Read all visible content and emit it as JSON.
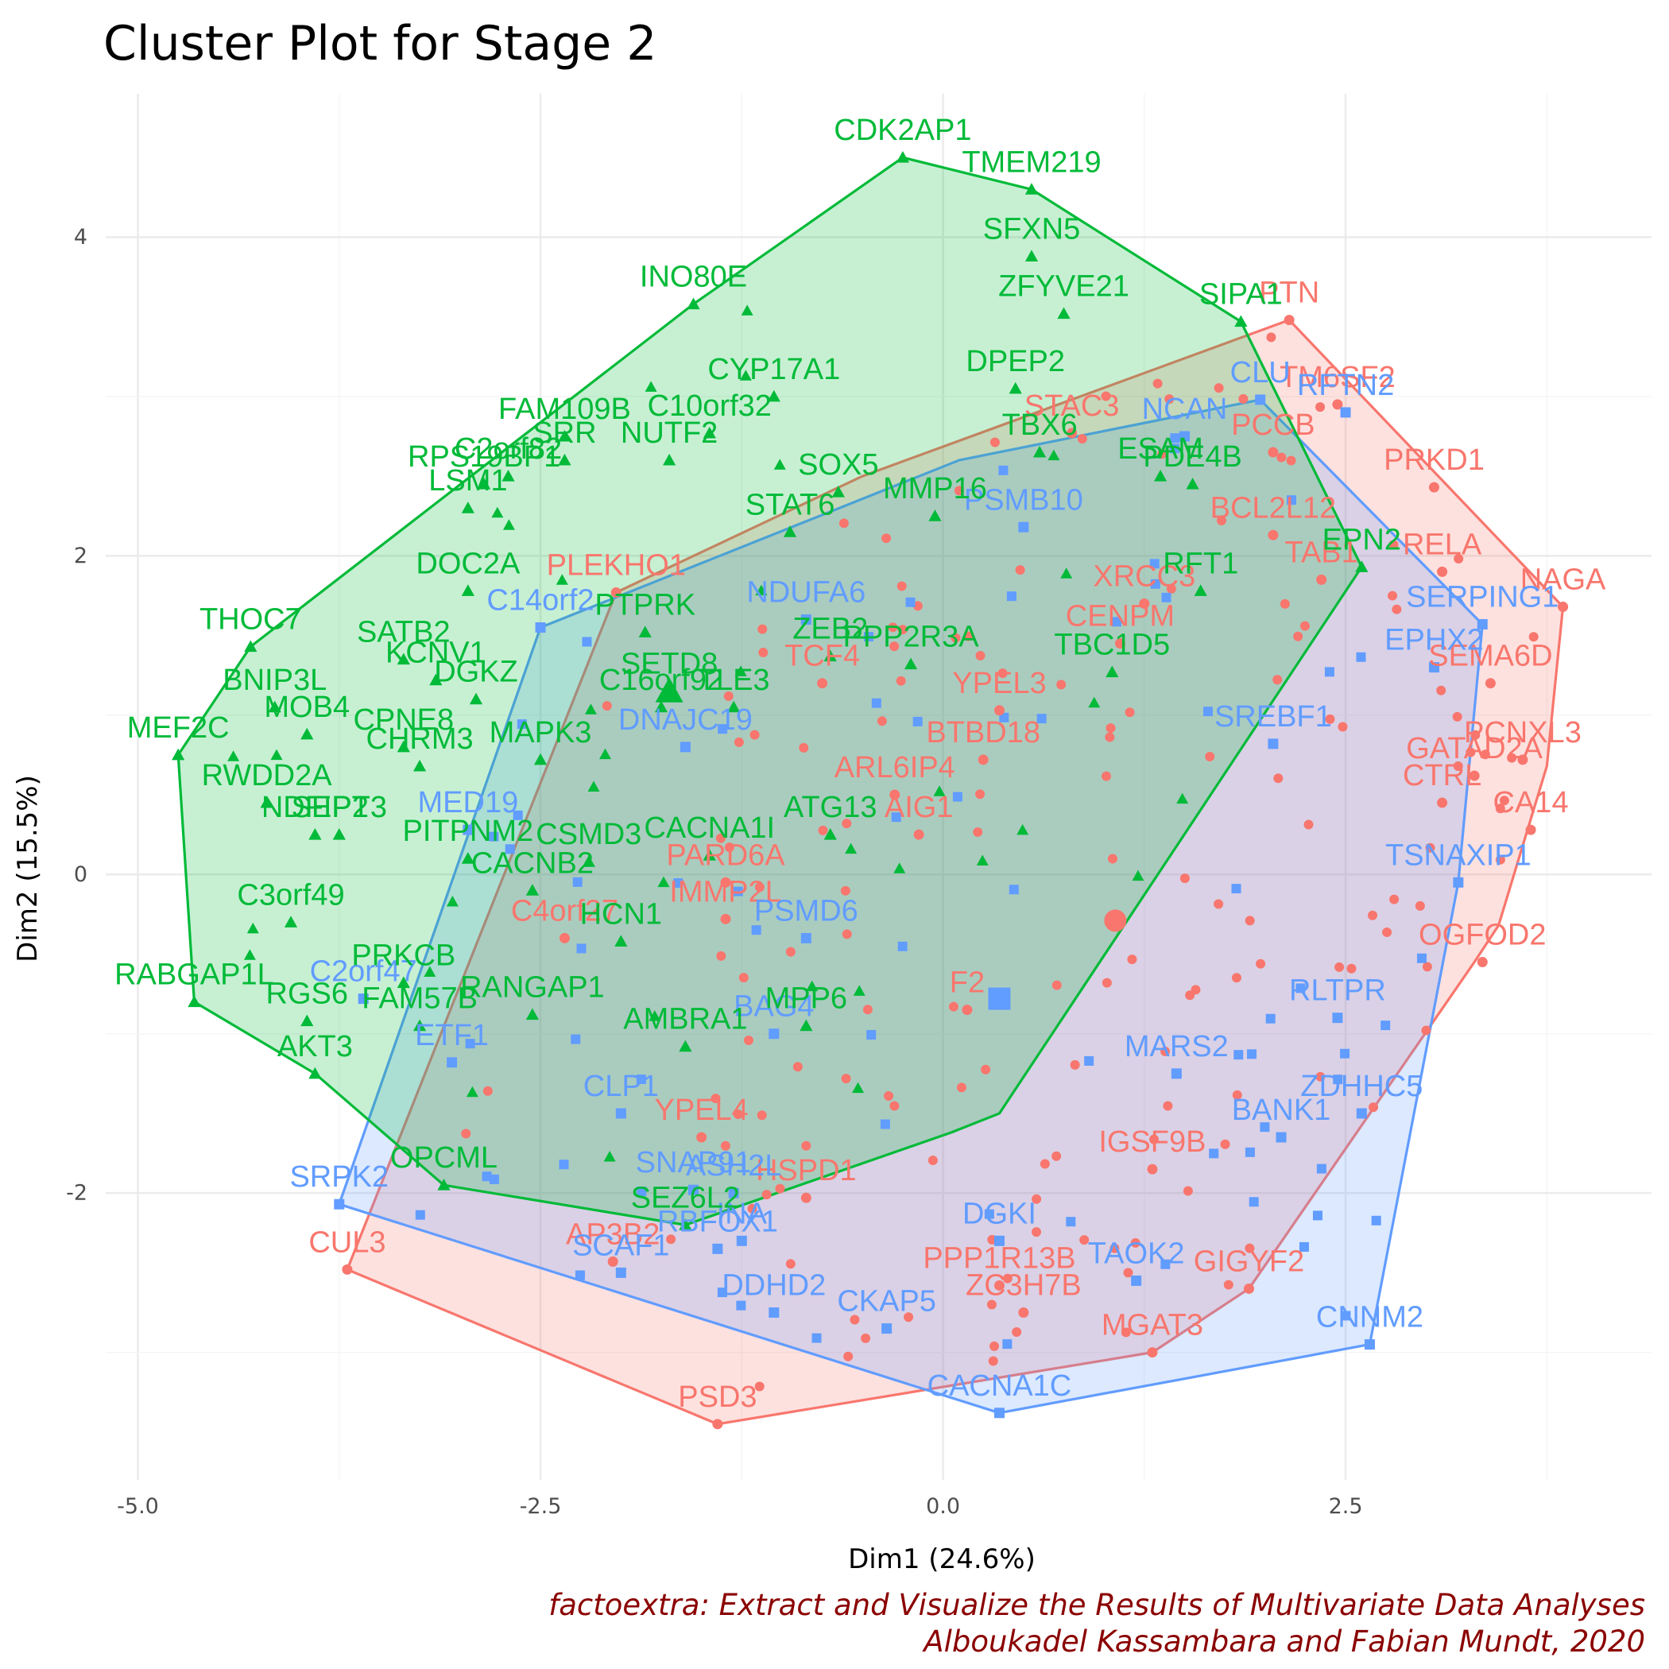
{
  "chart_data": {
    "type": "scatter",
    "title": "Cluster Plot for Stage 2",
    "xlabel": "Dim1 (24.6%)",
    "ylabel": "Dim2 (15.5%)",
    "xlim": [
      -5.2,
      4.4
    ],
    "ylim": [
      -3.8,
      4.9
    ],
    "x_ticks": [
      -5.0,
      -2.5,
      0.0,
      2.5
    ],
    "x_tick_labels": [
      "-5.0",
      "-2.5",
      "0.0",
      "2.5"
    ],
    "y_ticks": [
      -2,
      0,
      2,
      4
    ],
    "y_tick_labels": [
      "-2",
      "0",
      "2",
      "4"
    ],
    "grid": true,
    "caption": [
      "factoextra: Extract and Visualize the Results of Multivariate Data Analyses",
      "Alboukadel Kassambara and Fabian Mundt, 2020"
    ],
    "colors": {
      "cluster1": "#F8766D",
      "cluster2": "#619CFF",
      "cluster3": "#00BA38",
      "caption": "#8B0000"
    },
    "clusters": [
      {
        "id": "1",
        "color": "#F8766D",
        "shape": "circle",
        "center": [
          1.07,
          -0.29
        ],
        "hull": [
          [
            2.15,
            3.48
          ],
          [
            3.85,
            1.68
          ],
          [
            3.75,
            0.68
          ],
          [
            3.45,
            -0.32
          ],
          [
            3.3,
            -0.55
          ],
          [
            1.9,
            -2.6
          ],
          [
            1.3,
            -3.0
          ],
          [
            -1.4,
            -3.45
          ],
          [
            -3.7,
            -2.48
          ],
          [
            -2.03,
            1.77
          ],
          [
            -0.5,
            2.5
          ]
        ],
        "labeled_points": [
          {
            "label": "PTN",
            "x": 2.15,
            "y": 3.48
          },
          {
            "label": "TM6SF2",
            "x": 2.45,
            "y": 2.95
          },
          {
            "label": "PCCB",
            "x": 2.05,
            "y": 2.65
          },
          {
            "label": "PRKD1",
            "x": 3.05,
            "y": 2.43
          },
          {
            "label": "BCL2L12",
            "x": 2.05,
            "y": 2.13
          },
          {
            "label": "RELA",
            "x": 3.1,
            "y": 1.9
          },
          {
            "label": "NAGA",
            "x": 3.85,
            "y": 1.68
          },
          {
            "label": "STAC3",
            "x": 0.8,
            "y": 2.77
          },
          {
            "label": "PLEKHO1",
            "x": -2.03,
            "y": 1.77
          },
          {
            "label": "XRCC3",
            "x": 1.25,
            "y": 1.7
          },
          {
            "label": "TAB1",
            "x": 2.35,
            "y": 1.85
          },
          {
            "label": "CENPM",
            "x": 1.1,
            "y": 1.45
          },
          {
            "label": "SEMA6D",
            "x": 3.4,
            "y": 1.2
          },
          {
            "label": "TCF4",
            "x": -0.75,
            "y": 1.2
          },
          {
            "label": "YPEL3",
            "x": 0.35,
            "y": 1.03
          },
          {
            "label": "PCNXL3",
            "x": 3.6,
            "y": 0.72
          },
          {
            "label": "GATAD2A",
            "x": 3.3,
            "y": 0.62
          },
          {
            "label": "CTRL",
            "x": 3.1,
            "y": 0.45
          },
          {
            "label": "BTBD18",
            "x": 0.25,
            "y": 0.72
          },
          {
            "label": "ARL6IP4",
            "x": -0.3,
            "y": 0.5
          },
          {
            "label": "AIG1",
            "x": -0.15,
            "y": 0.25
          },
          {
            "label": "CA14",
            "x": 3.65,
            "y": 0.28
          },
          {
            "label": "PARD6A",
            "x": -1.35,
            "y": -0.05
          },
          {
            "label": "C4orf27",
            "x": -2.35,
            "y": -0.4
          },
          {
            "label": "IMMP2L",
            "x": -1.35,
            "y": -0.28
          },
          {
            "label": "OGFOD2",
            "x": 3.35,
            "y": -0.55
          },
          {
            "label": "F2",
            "x": 0.15,
            "y": -0.85
          },
          {
            "label": "YPEL4",
            "x": -1.5,
            "y": -1.65
          },
          {
            "label": "HSPD1",
            "x": -0.85,
            "y": -2.03
          },
          {
            "label": "IGSF9B",
            "x": 1.3,
            "y": -1.85
          },
          {
            "label": "AP3B2",
            "x": -2.05,
            "y": -2.43
          },
          {
            "label": "GIGYF2",
            "x": 1.9,
            "y": -2.6
          },
          {
            "label": "CUL3",
            "x": -3.7,
            "y": -2.48
          },
          {
            "label": "PPP1R13B",
            "x": 0.35,
            "y": -2.58
          },
          {
            "label": "ZC3H7B",
            "x": 0.5,
            "y": -2.75
          },
          {
            "label": "MGAT3",
            "x": 1.3,
            "y": -3.0
          },
          {
            "label": "PSD3",
            "x": -1.4,
            "y": -3.45
          }
        ]
      },
      {
        "id": "2",
        "color": "#619CFF",
        "shape": "square",
        "center": [
          0.35,
          -0.78
        ],
        "hull": [
          [
            1.97,
            2.98
          ],
          [
            3.35,
            1.57
          ],
          [
            3.2,
            -0.05
          ],
          [
            2.65,
            -2.95
          ],
          [
            0.35,
            -3.38
          ],
          [
            -3.75,
            -2.07
          ],
          [
            -2.5,
            1.55
          ],
          [
            0.1,
            2.6
          ]
        ],
        "labeled_points": [
          {
            "label": "CLU",
            "x": 1.97,
            "y": 2.98
          },
          {
            "label": "NCAN",
            "x": 1.5,
            "y": 2.75
          },
          {
            "label": "RFTN2",
            "x": 2.5,
            "y": 2.9
          },
          {
            "label": "PSMB10",
            "x": 0.5,
            "y": 2.18
          },
          {
            "label": "SERPING1",
            "x": 3.35,
            "y": 1.57
          },
          {
            "label": "NDUFA6",
            "x": -0.85,
            "y": 1.6
          },
          {
            "label": "C14orf2",
            "x": -2.5,
            "y": 1.55
          },
          {
            "label": "EPHX2",
            "x": 3.05,
            "y": 1.3
          },
          {
            "label": "SREBF1",
            "x": 2.05,
            "y": 0.82
          },
          {
            "label": "DNAJC19",
            "x": -1.6,
            "y": 0.8
          },
          {
            "label": "TSNAXIP1",
            "x": 3.2,
            "y": -0.05
          },
          {
            "label": "MED19",
            "x": -2.95,
            "y": 0.28
          },
          {
            "label": "PSMD6",
            "x": -0.85,
            "y": -0.4
          },
          {
            "label": "C2orf47",
            "x": -3.6,
            "y": -0.78
          },
          {
            "label": "ETF1",
            "x": -3.05,
            "y": -1.18
          },
          {
            "label": "BAG4",
            "x": -1.05,
            "y": -1.0
          },
          {
            "label": "RLTPR",
            "x": 2.45,
            "y": -0.9
          },
          {
            "label": "MARS2",
            "x": 1.45,
            "y": -1.25
          },
          {
            "label": "ZDHHC5",
            "x": 2.6,
            "y": -1.5
          },
          {
            "label": "CLP1",
            "x": -2.0,
            "y": -1.5
          },
          {
            "label": "BANK1",
            "x": 2.1,
            "y": -1.65
          },
          {
            "label": "ASH2L",
            "x": -1.3,
            "y": -2.0
          },
          {
            "label": "SNAP91",
            "x": -1.55,
            "y": -1.98
          },
          {
            "label": "SRPK2",
            "x": -3.75,
            "y": -2.07
          },
          {
            "label": "INA",
            "x": -1.25,
            "y": -2.3
          },
          {
            "label": "DGKI",
            "x": 0.35,
            "y": -2.3
          },
          {
            "label": "TAOK2",
            "x": 1.2,
            "y": -2.55
          },
          {
            "label": "RBFOX1",
            "x": -1.4,
            "y": -2.35
          },
          {
            "label": "SCAF1",
            "x": -2.0,
            "y": -2.5
          },
          {
            "label": "DDHD2",
            "x": -1.05,
            "y": -2.75
          },
          {
            "label": "CKAP5",
            "x": -0.35,
            "y": -2.85
          },
          {
            "label": "CNNM2",
            "x": 2.65,
            "y": -2.95
          },
          {
            "label": "CACNA1C",
            "x": 0.35,
            "y": -3.38
          }
        ]
      },
      {
        "id": "3",
        "color": "#00BA38",
        "shape": "triangle",
        "center": [
          -1.7,
          1.15
        ],
        "hull": [
          [
            -0.25,
            4.5
          ],
          [
            0.55,
            4.3
          ],
          [
            1.85,
            3.47
          ],
          [
            2.6,
            1.93
          ],
          [
            0.35,
            -1.5
          ],
          [
            0.05,
            -1.62
          ],
          [
            -1.6,
            -2.2
          ],
          [
            -3.1,
            -1.95
          ],
          [
            -3.9,
            -1.25
          ],
          [
            -4.65,
            -0.8
          ],
          [
            -4.75,
            0.75
          ],
          [
            -4.3,
            1.43
          ],
          [
            -1.55,
            3.58
          ]
        ],
        "labeled_points": [
          {
            "label": "CDK2AP1",
            "x": -0.25,
            "y": 4.5
          },
          {
            "label": "TMEM219",
            "x": 0.55,
            "y": 4.3
          },
          {
            "label": "SFXN5",
            "x": 0.55,
            "y": 3.88
          },
          {
            "label": "INO80E",
            "x": -1.55,
            "y": 3.58
          },
          {
            "label": "ZFYVE21",
            "x": 0.75,
            "y": 3.52
          },
          {
            "label": "SIPA1",
            "x": 1.85,
            "y": 3.47
          },
          {
            "label": "CYP17A1",
            "x": -1.05,
            "y": 3.0
          },
          {
            "label": "DPEP2",
            "x": 0.45,
            "y": 3.05
          },
          {
            "label": "FAM109B",
            "x": -2.35,
            "y": 2.75
          },
          {
            "label": "C10orf32",
            "x": -1.45,
            "y": 2.77
          },
          {
            "label": "C2orf82",
            "x": -2.7,
            "y": 2.5
          },
          {
            "label": "RPS19BP1",
            "x": -2.85,
            "y": 2.45
          },
          {
            "label": "SRR",
            "x": -2.35,
            "y": 2.6
          },
          {
            "label": "NUTF2",
            "x": -1.7,
            "y": 2.6
          },
          {
            "label": "LSM1",
            "x": -2.95,
            "y": 2.3
          },
          {
            "label": "SOX5",
            "x": -0.65,
            "y": 2.4
          },
          {
            "label": "ESAM",
            "x": 1.35,
            "y": 2.5
          },
          {
            "label": "TBX6",
            "x": 0.6,
            "y": 2.65
          },
          {
            "label": "MMP16",
            "x": -0.05,
            "y": 2.25
          },
          {
            "label": "PDE4B",
            "x": 1.55,
            "y": 2.45
          },
          {
            "label": "EPN2",
            "x": 2.6,
            "y": 1.93
          },
          {
            "label": "RFT1",
            "x": 1.6,
            "y": 1.78
          },
          {
            "label": "STAT6",
            "x": -0.95,
            "y": 2.15
          },
          {
            "label": "DOC2A",
            "x": -2.95,
            "y": 1.78
          },
          {
            "label": "THOC7",
            "x": -4.3,
            "y": 1.43
          },
          {
            "label": "PTPRK",
            "x": -1.85,
            "y": 1.52
          },
          {
            "label": "ZEB2",
            "x": -0.7,
            "y": 1.37
          },
          {
            "label": "PPP2R3A",
            "x": -0.2,
            "y": 1.32
          },
          {
            "label": "SATB2",
            "x": -3.35,
            "y": 1.35
          },
          {
            "label": "KCNV1",
            "x": -3.15,
            "y": 1.22
          },
          {
            "label": "BNIP3L",
            "x": -4.15,
            "y": 1.05
          },
          {
            "label": "DGKZ",
            "x": -2.9,
            "y": 1.1
          },
          {
            "label": "SETD8",
            "x": -1.7,
            "y": 1.15
          },
          {
            "label": "TLE3",
            "x": -1.3,
            "y": 1.05
          },
          {
            "label": "TBC1D5",
            "x": 1.05,
            "y": 1.27
          },
          {
            "label": "MEF2C",
            "x": -4.75,
            "y": 0.75
          },
          {
            "label": "MOB4",
            "x": -3.95,
            "y": 0.88
          },
          {
            "label": "CPNE8",
            "x": -3.35,
            "y": 0.8
          },
          {
            "label": "MAPK3",
            "x": -2.5,
            "y": 0.72
          },
          {
            "label": "C16orf92",
            "x": -1.75,
            "y": 1.05
          },
          {
            "label": "RWDD2A",
            "x": -4.2,
            "y": 0.45
          },
          {
            "label": "CHRM3",
            "x": -3.25,
            "y": 0.68
          },
          {
            "label": "NDFIP2",
            "x": -3.9,
            "y": 0.25
          },
          {
            "label": "CSMD3",
            "x": -2.2,
            "y": 0.08
          },
          {
            "label": "CACNA1I",
            "x": -1.45,
            "y": 0.12
          },
          {
            "label": "ATG13",
            "x": -0.7,
            "y": 0.25
          },
          {
            "label": "PITPNM2",
            "x": -2.95,
            "y": 0.1
          },
          {
            "label": "SEPT3",
            "x": -3.75,
            "y": 0.25
          },
          {
            "label": "CACNB2",
            "x": -2.55,
            "y": -0.1
          },
          {
            "label": "C3orf49",
            "x": -4.05,
            "y": -0.3
          },
          {
            "label": "HCN1",
            "x": -2.0,
            "y": -0.42
          },
          {
            "label": "RABGAP1L",
            "x": -4.65,
            "y": -0.8
          },
          {
            "label": "PRKCB",
            "x": -3.35,
            "y": -0.68
          },
          {
            "label": "RANGAP1",
            "x": -2.55,
            "y": -0.88
          },
          {
            "label": "MPP6",
            "x": -0.85,
            "y": -0.95
          },
          {
            "label": "RGS6",
            "x": -3.95,
            "y": -0.92
          },
          {
            "label": "FAM57B",
            "x": -3.25,
            "y": -0.95
          },
          {
            "label": "AMBRA1",
            "x": -1.6,
            "y": -1.08
          },
          {
            "label": "AKT3",
            "x": -3.9,
            "y": -1.25
          },
          {
            "label": "OPCML",
            "x": -3.1,
            "y": -1.95
          },
          {
            "label": "SEZ6L2",
            "x": -1.6,
            "y": -2.2
          }
        ]
      }
    ]
  }
}
